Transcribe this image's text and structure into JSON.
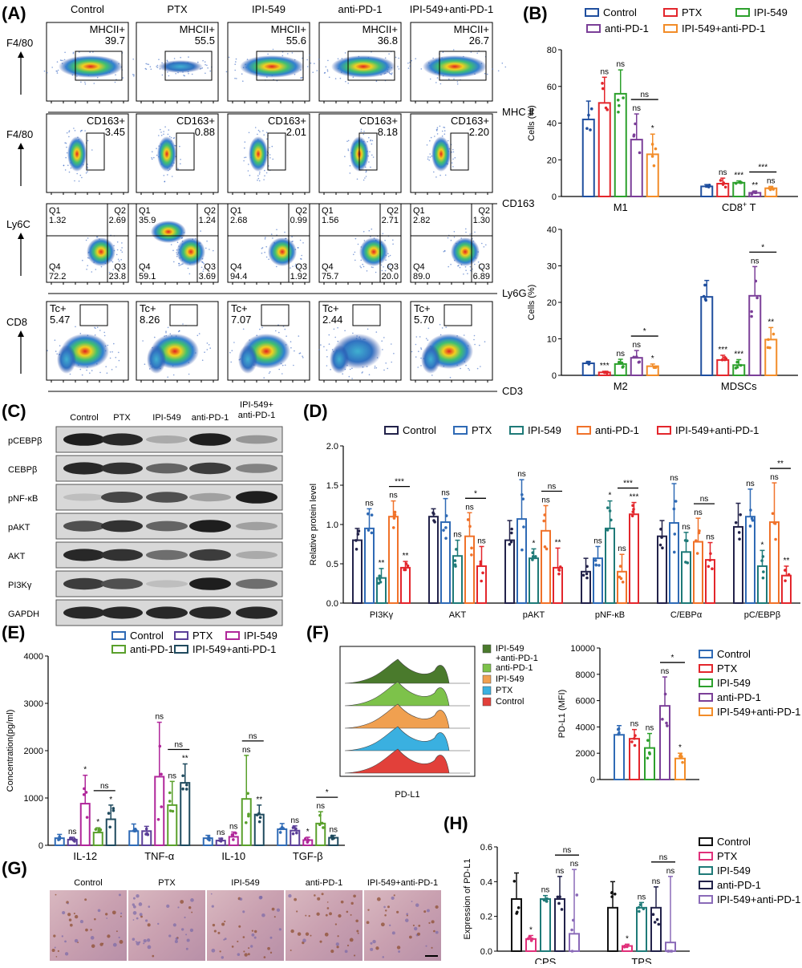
{
  "A": {
    "letter": "(A)",
    "columns": [
      "Control",
      "PTX",
      "IPI-549",
      "anti-PD-1",
      "IPI-549+anti-PD-1"
    ],
    "rows": [
      {
        "ylabel": "F4/80",
        "xlabel": "MHC Ⅱ",
        "gate_label": "MHCII+",
        "values": [
          "39.7",
          "55.5",
          "55.6",
          "36.8",
          "26.7"
        ]
      },
      {
        "ylabel": "F4/80",
        "xlabel": "CD163",
        "gate_label": "CD163+",
        "values": [
          "3.45",
          "0.88",
          "2.01",
          "8.18",
          "2.20"
        ]
      },
      {
        "ylabel": "Ly6C",
        "xlabel": "Ly6G",
        "quadrants": [
          {
            "Q1": "1.32",
            "Q2": "2.69",
            "Q3": "23.8",
            "Q4": "72.2"
          },
          {
            "Q1": "35.9",
            "Q2": "1.24",
            "Q3": "3.69",
            "Q4": "59.1"
          },
          {
            "Q1": "2.68",
            "Q2": "0.99",
            "Q3": "1.92",
            "Q4": "94.4"
          },
          {
            "Q1": "1.56",
            "Q2": "2.71",
            "Q3": "20.0",
            "Q4": "75.7"
          },
          {
            "Q1": "2.82",
            "Q2": "1.30",
            "Q3": "6.89",
            "Q4": "89.0"
          }
        ]
      },
      {
        "ylabel": "CD8",
        "xlabel": "CD3",
        "gate_label": "Tc+",
        "values": [
          "5.47",
          "8.26",
          "7.07",
          "2.44",
          "5.70"
        ]
      }
    ]
  },
  "B": {
    "letter": "(B)",
    "legend": [
      "Control",
      "PTX",
      "IPI-549",
      "anti-PD-1",
      "IPI-549+anti-PD-1"
    ],
    "colors": [
      "#1f4e9e",
      "#e3262c",
      "#2ca02c",
      "#7b3f98",
      "#f28c28"
    ],
    "top": {
      "ylabel": "Cells (%)",
      "ylim": [
        0,
        80
      ],
      "ticks": [
        "0",
        "20",
        "40",
        "60",
        "80"
      ],
      "groups": [
        {
          "name": "M1",
          "means": [
            42,
            51,
            56,
            31,
            23
          ],
          "errors": [
            10,
            14,
            13,
            14,
            11
          ],
          "sig": [
            "",
            "ns",
            "ns",
            "ns",
            "*"
          ],
          "bracket": {
            "from": 3,
            "to": 4,
            "label": "ns"
          }
        },
        {
          "name": "CD8 + T",
          "name_main": "CD8",
          "name_sup": "+",
          "name_tail": " T",
          "means": [
            5.5,
            7,
            7.5,
            2,
            4.5
          ],
          "errors": [
            1,
            3,
            1,
            1,
            1
          ],
          "sig": [
            "",
            "ns",
            "***",
            "**",
            "ns"
          ],
          "bracket": {
            "from": 3,
            "to": 4,
            "label": "***"
          }
        }
      ]
    },
    "bottom": {
      "ylabel": "Cells (%)",
      "ylim": [
        0,
        40
      ],
      "ticks": [
        "0",
        "10",
        "20",
        "30",
        "40"
      ],
      "groups": [
        {
          "name": "M2",
          "means": [
            3.3,
            0.8,
            3.1,
            4.8,
            2.5
          ],
          "errors": [
            0.5,
            0.3,
            1.3,
            2.0,
            0.6
          ],
          "sig": [
            "",
            "***",
            "ns",
            "ns",
            "*"
          ],
          "bracket": {
            "from": 3,
            "to": 4,
            "label": "*"
          }
        },
        {
          "name": "MDSCs",
          "means": [
            21.5,
            4.2,
            2.8,
            21.8,
            9.8
          ],
          "errors": [
            4.5,
            1.3,
            1.5,
            8,
            3.3
          ],
          "sig": [
            "",
            "***",
            "***",
            "ns",
            "**"
          ],
          "bracket": {
            "from": 3,
            "to": 4,
            "label": "*"
          }
        }
      ]
    }
  },
  "C": {
    "letter": "(C)",
    "columns": [
      "Control",
      "PTX",
      "IPI-549",
      "anti-PD-1",
      "IPI-549+\nanti-PD-1"
    ],
    "col_line1": [
      "Control",
      "PTX",
      "IPI-549",
      "anti-PD-1",
      "IPI-549+"
    ],
    "col_line2": [
      "",
      "",
      "",
      "",
      "anti-PD-1"
    ],
    "bands": [
      {
        "label": "pCEBPβ",
        "intensity": [
          0.95,
          0.9,
          0.25,
          0.95,
          0.35
        ]
      },
      {
        "label": "CEBPβ",
        "intensity": [
          0.9,
          0.85,
          0.6,
          0.8,
          0.45
        ]
      },
      {
        "label": "pNF-κB",
        "intensity": [
          0.15,
          0.75,
          0.7,
          0.3,
          0.95
        ]
      },
      {
        "label": "pAKT",
        "intensity": [
          0.7,
          0.85,
          0.6,
          0.95,
          0.3
        ]
      },
      {
        "label": "AKT",
        "intensity": [
          0.9,
          0.85,
          0.55,
          0.8,
          0.25
        ]
      },
      {
        "label": "PI3Kγ",
        "intensity": [
          0.8,
          0.7,
          0.15,
          0.95,
          0.55
        ]
      },
      {
        "label": "GAPDH",
        "intensity": [
          0.9,
          0.9,
          0.9,
          0.9,
          0.9
        ]
      }
    ]
  },
  "D": {
    "letter": "(D)",
    "legend": [
      "Control",
      "PTX",
      "IPI-549",
      "anti-PD-1",
      "IPI-549+anti-PD-1"
    ],
    "colors": [
      "#22224a",
      "#2f6ab5",
      "#1f7a78",
      "#f0722a",
      "#e3262c"
    ],
    "ylabel": "Relative protein level",
    "ylim": [
      0,
      2.0
    ],
    "ticks": [
      "0.0",
      "0.5",
      "1.0",
      "1.5",
      "2.0"
    ],
    "groups": [
      {
        "name": "PI3Kγ",
        "means": [
          0.8,
          0.95,
          0.32,
          1.1,
          0.45
        ],
        "errors": [
          0.15,
          0.25,
          0.12,
          0.2,
          0.08
        ],
        "sig": [
          "",
          "ns",
          "**",
          "ns",
          "**"
        ],
        "bracket": {
          "from": 3,
          "to": 4,
          "label": "***"
        }
      },
      {
        "name": "AKT",
        "means": [
          1.1,
          1.03,
          0.6,
          0.85,
          0.47
        ],
        "errors": [
          0.1,
          0.3,
          0.2,
          0.3,
          0.25
        ],
        "sig": [
          "",
          "ns",
          "ns",
          "ns",
          "ns"
        ],
        "bracket": {
          "from": 3,
          "to": 4,
          "label": "*"
        }
      },
      {
        "name": "pAKT",
        "means": [
          0.8,
          1.07,
          0.57,
          0.92,
          0.45
        ],
        "errors": [
          0.25,
          0.5,
          0.12,
          0.32,
          0.25
        ],
        "sig": [
          "",
          "ns",
          "*",
          "ns",
          "**"
        ],
        "bracket": {
          "from": 3,
          "to": 4,
          "label": "ns"
        }
      },
      {
        "name": "pNF-κB",
        "means": [
          0.4,
          0.57,
          0.95,
          0.4,
          1.13
        ],
        "errors": [
          0.17,
          0.15,
          0.35,
          0.22,
          0.15
        ],
        "sig": [
          "",
          "ns",
          "*",
          "ns",
          "***"
        ],
        "bracket": {
          "from": 3,
          "to": 4,
          "label": "***"
        }
      },
      {
        "name": "C/EBPα",
        "means": [
          0.85,
          1.02,
          0.65,
          0.78,
          0.55
        ],
        "errors": [
          0.2,
          0.5,
          0.25,
          0.3,
          0.22
        ],
        "sig": [
          "",
          "ns",
          "ns",
          "ns",
          "ns"
        ],
        "bracket": {
          "from": 3,
          "to": 4,
          "label": "ns"
        }
      },
      {
        "name": "pC/EBPβ",
        "means": [
          0.97,
          1.1,
          0.47,
          1.03,
          0.35
        ],
        "errors": [
          0.3,
          0.35,
          0.2,
          0.5,
          0.12
        ],
        "sig": [
          "",
          "ns",
          "*",
          "ns",
          "**"
        ],
        "bracket": {
          "from": 3,
          "to": 4,
          "label": "**"
        }
      }
    ]
  },
  "E": {
    "letter": "(E)",
    "legend": [
      "Control",
      "PTX",
      "IPI-549",
      "anti-PD-1",
      "IPI-549+anti-PD-1"
    ],
    "colors": [
      "#2f6ab5",
      "#5b3f98",
      "#b0279a",
      "#5aa02c",
      "#1f4a5e"
    ],
    "ylabel": "Concentration(pg/ml)",
    "ylim": [
      0,
      4000
    ],
    "ticks": [
      "0",
      "1000",
      "2000",
      "3000",
      "4000"
    ],
    "groups": [
      {
        "name": "IL-12",
        "means": [
          150,
          120,
          880,
          270,
          550
        ],
        "errors": [
          80,
          50,
          600,
          100,
          300
        ],
        "sig": [
          "",
          "ns",
          "*",
          "*",
          "*"
        ],
        "bracket": {
          "from": 3,
          "to": 4,
          "label": "ns"
        }
      },
      {
        "name": "TNF-α",
        "means": [
          300,
          300,
          1450,
          850,
          1320
        ],
        "errors": [
          150,
          100,
          1150,
          500,
          400
        ],
        "sig": [
          "",
          "",
          "ns",
          "ns",
          "**"
        ],
        "bracket": {
          "from": 3,
          "to": 4,
          "label": "ns"
        }
      },
      {
        "name": "IL-10",
        "means": [
          150,
          100,
          180,
          980,
          650
        ],
        "errors": [
          60,
          50,
          100,
          920,
          200
        ],
        "sig": [
          "",
          "ns",
          "ns",
          "ns",
          "**"
        ],
        "bracket": {
          "from": 3,
          "to": 4,
          "label": "ns"
        }
      },
      {
        "name": "TGF-β",
        "means": [
          340,
          310,
          110,
          460,
          160
        ],
        "errors": [
          120,
          100,
          60,
          250,
          50
        ],
        "sig": [
          "",
          "ns",
          "*",
          "ns",
          "ns"
        ],
        "bracket": {
          "from": 3,
          "to": 4,
          "label": "*"
        }
      }
    ]
  },
  "F": {
    "letter": "(F)",
    "hist_legend": [
      "IPI-549\n+anti-PD-1",
      "anti-PD-1",
      "IPI-549",
      "PTX",
      "Control"
    ],
    "hist_legend_lines": [
      [
        "IPI-549",
        "+anti-PD-1"
      ],
      [
        "anti-PD-1"
      ],
      [
        "IPI-549"
      ],
      [
        "PTX"
      ],
      [
        "Control"
      ]
    ],
    "hist_colors": [
      "#4a7a2c",
      "#7dc24a",
      "#f0a050",
      "#3ab0e0",
      "#e2403a"
    ],
    "hist_xlabel": "PD-L1",
    "bar": {
      "legend": [
        "Control",
        "PTX",
        "IPI-549",
        "anti-PD-1",
        "IPI-549+anti-PD-1"
      ],
      "colors": [
        "#2f6ab5",
        "#e3262c",
        "#2ca02c",
        "#7b3f98",
        "#f28c28"
      ],
      "ylabel": "PD-L1 (MFI)",
      "ylim": [
        0,
        10000
      ],
      "ticks": [
        "0",
        "2000",
        "4000",
        "6000",
        "8000",
        "10000"
      ],
      "means": [
        3400,
        3100,
        2400,
        5600,
        1600
      ],
      "errors": [
        700,
        700,
        1100,
        2200,
        400
      ],
      "sig": [
        "",
        "ns",
        "ns",
        "ns",
        "*"
      ],
      "bracket": {
        "from": 3,
        "to": 4,
        "label": "*"
      }
    }
  },
  "G": {
    "letter": "(G)",
    "columns": [
      "Control",
      "PTX",
      "IPI-549",
      "anti-PD-1",
      "IPI-549+anti-PD-1"
    ]
  },
  "H": {
    "letter": "(H)",
    "legend": [
      "Control",
      "PTX",
      "IPI-549",
      "anti-PD-1",
      "IPI-549+anti-PD-1"
    ],
    "colors": [
      "#111111",
      "#e0307a",
      "#1f7a78",
      "#22224a",
      "#8a6ab8"
    ],
    "ylabel": "Expression of PD-L1",
    "ylim": [
      0,
      0.6
    ],
    "ticks": [
      "0.0",
      "0.2",
      "0.4",
      "0.6"
    ],
    "groups": [
      {
        "name": "CPS",
        "means": [
          0.3,
          0.07,
          0.3,
          0.3,
          0.1
        ],
        "errors": [
          0.15,
          0.02,
          0.02,
          0.13,
          0.37
        ],
        "sig": [
          "",
          "*",
          "ns",
          "ns",
          "ns"
        ],
        "bracket": {
          "from": 3,
          "to": 4,
          "label": "ns"
        }
      },
      {
        "name": "TPS",
        "means": [
          0.25,
          0.03,
          0.25,
          0.25,
          0.05
        ],
        "errors": [
          0.15,
          0.01,
          0.03,
          0.12,
          0.38
        ],
        "sig": [
          "",
          "*",
          "ns",
          "ns",
          "ns"
        ],
        "bracket": {
          "from": 3,
          "to": 4,
          "label": "ns"
        }
      }
    ]
  }
}
